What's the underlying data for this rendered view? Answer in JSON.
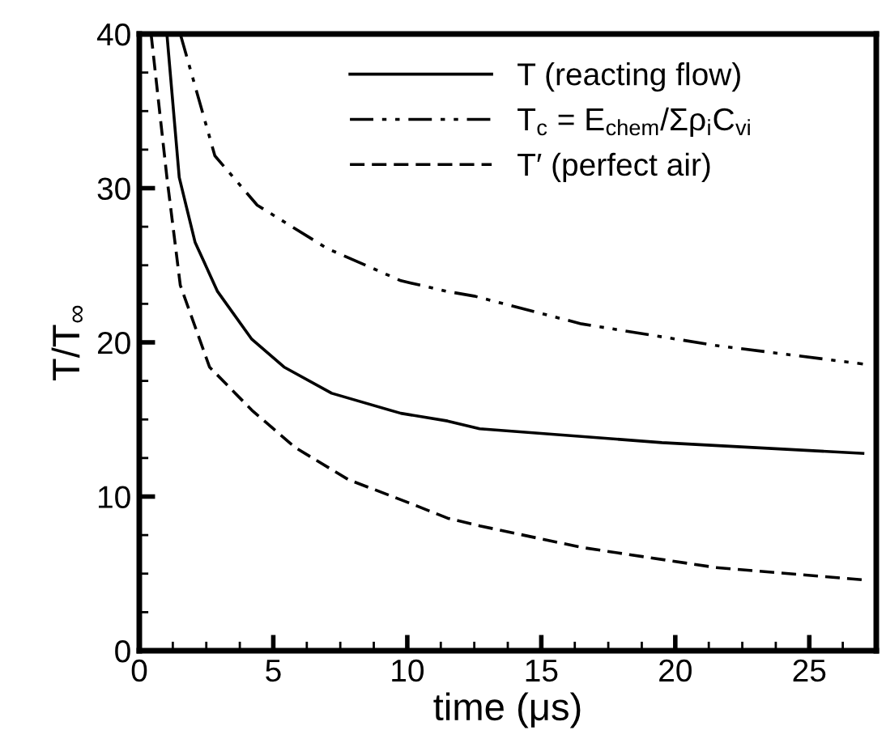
{
  "chart_data": {
    "type": "line",
    "xlabel": "time (μs)",
    "ylabel": "T/T$_{∞}$",
    "xlim": [
      0,
      27.5
    ],
    "ylim": [
      0,
      40
    ],
    "xticks": [
      0,
      5,
      10,
      15,
      20,
      25
    ],
    "yticks": [
      0,
      10,
      20,
      30,
      40
    ],
    "grid": false,
    "legend": "top right",
    "marker": "none",
    "series": [
      {
        "name": "T (reacting flow)",
        "color": "#000000",
        "line_style": "solid",
        "x": [
          1.03,
          1.49,
          2.08,
          2.92,
          4.2,
          5.4,
          7.18,
          9.76,
          11.5,
          12.7,
          19.5,
          27.0
        ],
        "values": [
          40,
          30.7,
          26.5,
          23.3,
          20.2,
          18.4,
          16.7,
          15.4,
          14.9,
          14.4,
          13.5,
          12.8
        ]
      },
      {
        "name": "T$_{c}$ = E$_{chem}$/Σρ$_{i}$C$_{vi}$",
        "color": "#000000",
        "line_style": "dashdot",
        "x": [
          1.53,
          2.82,
          4.4,
          7.0,
          9.76,
          11.5,
          12.5,
          16.5,
          21.5,
          27.0
        ],
        "values": [
          40,
          32.1,
          28.9,
          26.1,
          24.0,
          23.3,
          23.0,
          21.2,
          19.8,
          18.6
        ]
      },
      {
        "name": "T′ (perfect air)",
        "color": "#000000",
        "line_style": "dashed",
        "x": [
          0.44,
          1.03,
          1.53,
          2.62,
          4.2,
          5.8,
          7.8,
          10.2,
          11.5,
          12.7,
          16.5,
          21.5,
          27.0
        ],
        "values": [
          40,
          30.7,
          23.7,
          18.4,
          15.6,
          13.2,
          11.1,
          9.5,
          8.6,
          8.1,
          6.7,
          5.4,
          4.6
        ]
      }
    ]
  }
}
